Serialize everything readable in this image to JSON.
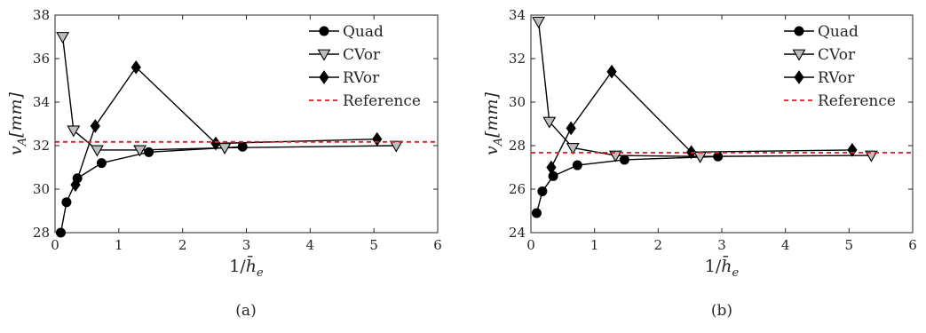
{
  "chart_data": [
    {
      "type": "line",
      "caption": "(a)",
      "xlabel": "1/h̄e",
      "ylabel": "vA [mm]",
      "xlim": [
        0,
        6
      ],
      "ylim": [
        28,
        38
      ],
      "xticks": [
        "0",
        "1",
        "2",
        "3",
        "4",
        "5",
        "6"
      ],
      "yticks": [
        "28",
        "30",
        "32",
        "34",
        "36",
        "38"
      ],
      "legend_position": "top-right",
      "series": [
        {
          "name": "Quad",
          "marker": "circle",
          "color": "#000000",
          "x": [
            0.09,
            0.18,
            0.35,
            0.73,
            1.47,
            2.94
          ],
          "y": [
            28.0,
            29.4,
            30.5,
            31.2,
            31.7,
            31.95
          ]
        },
        {
          "name": "CVor",
          "marker": "triangle-down",
          "color": "#000000",
          "x": [
            0.12,
            0.29,
            0.66,
            1.33,
            2.66,
            5.35
          ],
          "y": [
            37.0,
            32.7,
            31.8,
            31.8,
            31.9,
            32.0
          ]
        },
        {
          "name": "RVor",
          "marker": "diamond",
          "color": "#000000",
          "x": [
            0.32,
            0.63,
            1.27,
            2.52,
            5.05
          ],
          "y": [
            30.2,
            32.9,
            35.6,
            32.1,
            32.3
          ]
        },
        {
          "name": "Reference",
          "style": "dashed",
          "color": "#e41a1c",
          "x": [
            0,
            6
          ],
          "y": [
            32.17,
            32.17
          ]
        }
      ]
    },
    {
      "type": "line",
      "caption": "(b)",
      "xlabel": "1/h̄e",
      "ylabel": "vA [mm]",
      "xlim": [
        0,
        6
      ],
      "ylim": [
        24,
        34
      ],
      "xticks": [
        "0",
        "1",
        "2",
        "3",
        "4",
        "5",
        "6"
      ],
      "yticks": [
        "24",
        "26",
        "28",
        "30",
        "32",
        "34"
      ],
      "legend_position": "top-right",
      "series": [
        {
          "name": "Quad",
          "marker": "circle",
          "color": "#000000",
          "x": [
            0.09,
            0.18,
            0.35,
            0.73,
            1.47,
            2.94
          ],
          "y": [
            24.9,
            25.9,
            26.6,
            27.1,
            27.35,
            27.5
          ]
        },
        {
          "name": "CVor",
          "marker": "triangle-down",
          "color": "#000000",
          "x": [
            0.12,
            0.29,
            0.66,
            1.33,
            2.66,
            5.35
          ],
          "y": [
            33.7,
            29.1,
            27.9,
            27.55,
            27.5,
            27.55
          ]
        },
        {
          "name": "RVor",
          "marker": "diamond",
          "color": "#000000",
          "x": [
            0.32,
            0.63,
            1.27,
            2.52,
            5.05
          ],
          "y": [
            27.0,
            28.8,
            31.4,
            27.7,
            27.8
          ]
        },
        {
          "name": "Reference",
          "style": "dashed",
          "color": "#e41a1c",
          "x": [
            0,
            6
          ],
          "y": [
            27.68,
            27.68
          ]
        }
      ]
    }
  ]
}
